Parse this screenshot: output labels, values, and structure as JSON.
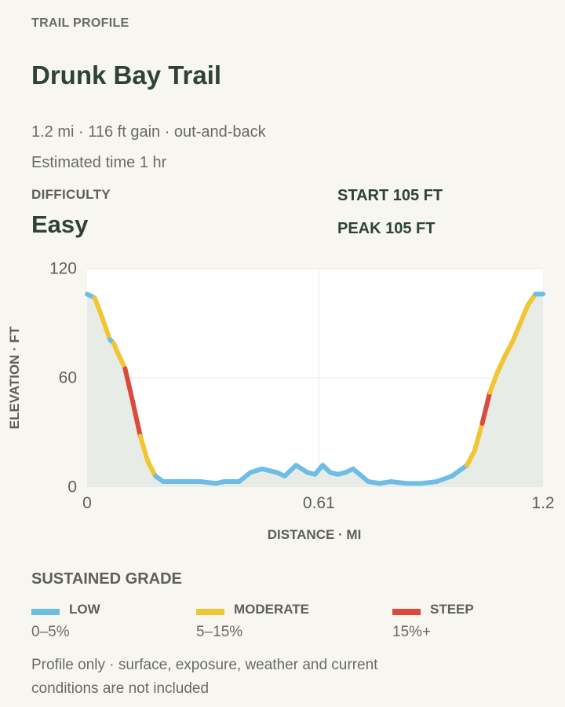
{
  "header": {
    "eyebrow": "TRAIL PROFILE",
    "title": "Drunk Bay Trail",
    "summary": "1.2 mi · 116 ft gain · out-and-back",
    "time": "Estimated time 1 hr"
  },
  "difficulty": {
    "label": "DIFFICULTY",
    "value": "Easy"
  },
  "stats": {
    "start": "START 105 FT",
    "peak": "PEAK 105 FT"
  },
  "chart_data": {
    "type": "area",
    "xlabel": "DISTANCE · MI",
    "ylabel": "ELEVATION · FT",
    "xlim": [
      0,
      1.2
    ],
    "ylim": [
      0,
      120
    ],
    "x_ticks": [
      0,
      0.61,
      1.2
    ],
    "x_tick_labels": [
      "0",
      "0.61",
      "1.2"
    ],
    "y_ticks": [
      0,
      60,
      120
    ],
    "y_tick_labels": [
      "0",
      "60",
      "120"
    ],
    "grid": true,
    "series": [
      {
        "x": [
          0,
          0.02,
          0.04,
          0.06,
          0.07,
          0.08,
          0.1,
          0.12,
          0.14,
          0.16,
          0.18,
          0.2,
          0.22,
          0.24,
          0.3,
          0.34,
          0.36,
          0.4,
          0.43,
          0.46,
          0.5,
          0.52,
          0.55,
          0.58,
          0.6,
          0.62,
          0.64,
          0.66,
          0.68,
          0.7,
          0.74,
          0.77,
          0.8,
          0.84,
          0.88,
          0.92,
          0.96,
          1.0,
          1.02,
          1.04,
          1.06,
          1.08,
          1.1,
          1.12,
          1.14,
          1.16,
          1.18,
          1.2
        ],
        "y": [
          106,
          104,
          93,
          81,
          79,
          74,
          65,
          47,
          28,
          14,
          6,
          3,
          3,
          3,
          3,
          2,
          3,
          3,
          8,
          10,
          8,
          6,
          12,
          8,
          7,
          12,
          8,
          7,
          8,
          10,
          3,
          2,
          3,
          2,
          2,
          3,
          6,
          12,
          20,
          35,
          52,
          63,
          72,
          80,
          90,
          100,
          106,
          106
        ]
      }
    ],
    "grade_colors": {
      "low": "#6ebde6",
      "moderate": "#f2c534",
      "steep": "#dc4a3c"
    },
    "area_fill": "#e7ece6"
  },
  "legend": {
    "title": "SUSTAINED GRADE",
    "items": [
      {
        "name": "LOW",
        "range": "0–5%",
        "color": "#6ebde6"
      },
      {
        "name": "MODERATE",
        "range": "5–15%",
        "color": "#f2c534"
      },
      {
        "name": "STEEP",
        "range": "15%+",
        "color": "#dc4a3c"
      }
    ]
  },
  "footnote": "Profile only · surface, exposure, weather and current conditions are not included"
}
